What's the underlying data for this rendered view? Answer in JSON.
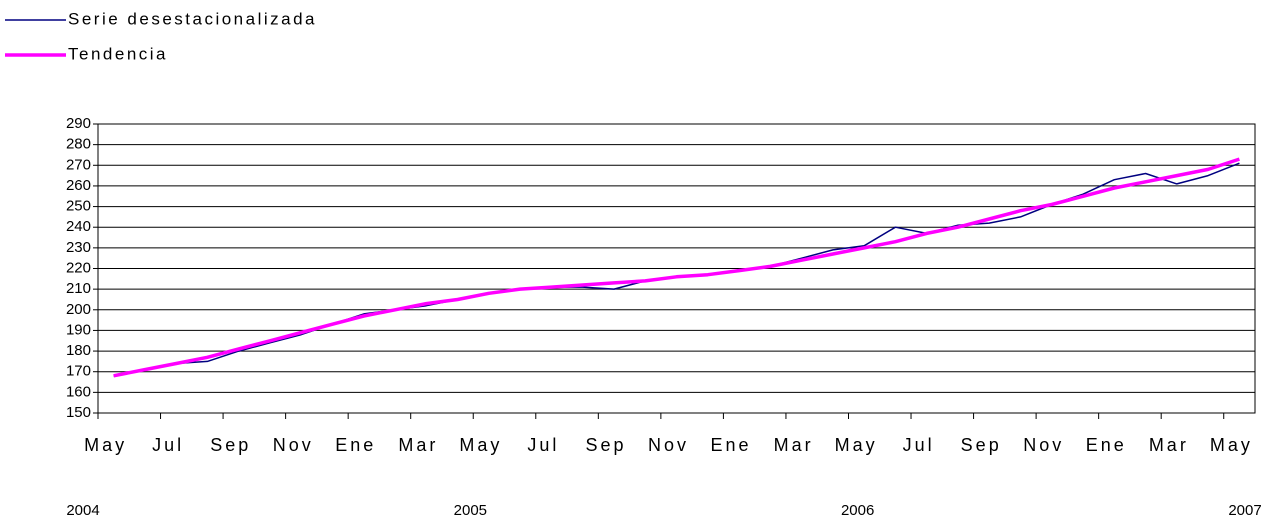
{
  "chart_data": {
    "type": "line",
    "categories": [
      "May",
      null,
      "Jul",
      null,
      "Sep",
      null,
      "Nov",
      null,
      "Ene",
      null,
      "Mar",
      null,
      "May",
      null,
      "Jul",
      null,
      "Sep",
      null,
      "Nov",
      null,
      "Ene",
      null,
      "Mar",
      null,
      "May",
      null,
      "Jul",
      null,
      "Sep",
      null,
      "Nov",
      null,
      "Ene",
      null,
      "Mar",
      null,
      "May"
    ],
    "year_labels": [
      "2004",
      "2005",
      "2006",
      "2007"
    ],
    "series": [
      {
        "name": "Serie desestacionalizada",
        "color": "#000080",
        "values": [
          168,
          171,
          174,
          175,
          180,
          184,
          188,
          193,
          198,
          200,
          202,
          205,
          208,
          210,
          211,
          211,
          210,
          214,
          216,
          217,
          219,
          221,
          225,
          229,
          231,
          240,
          237,
          241,
          242,
          245,
          251,
          256,
          263,
          266,
          261,
          265,
          271
        ]
      },
      {
        "name": "Tendencia",
        "color": "#ff00ff",
        "values": [
          168,
          171,
          174,
          177,
          181,
          185,
          189,
          193,
          197,
          200,
          203,
          205,
          208,
          210,
          211,
          212,
          213,
          214,
          216,
          217,
          219,
          221,
          224,
          227,
          230,
          233,
          237,
          240,
          244,
          248,
          251,
          255,
          259,
          262,
          265,
          268,
          273
        ]
      }
    ],
    "ylim": [
      150,
      290
    ],
    "yticks": [
      150,
      160,
      170,
      180,
      190,
      200,
      210,
      220,
      230,
      240,
      250,
      260,
      270,
      280,
      290
    ],
    "grid": true
  }
}
